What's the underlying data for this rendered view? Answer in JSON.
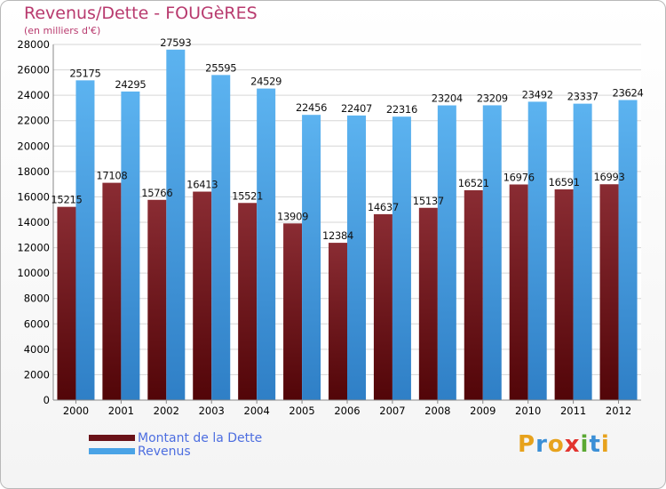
{
  "header": {
    "title": "Revenus/Dette - FOUGèRES",
    "subtitle": "(en milliers d'€)"
  },
  "chart_data": {
    "type": "bar",
    "title": "Revenus/Dette - FOUGèRES",
    "subtitle": "(en milliers d'€)",
    "xlabel": "",
    "ylabel": "",
    "ylim": [
      0,
      28000
    ],
    "yticks": [
      0,
      2000,
      4000,
      6000,
      8000,
      10000,
      12000,
      14000,
      16000,
      18000,
      20000,
      22000,
      24000,
      26000,
      28000
    ],
    "grid": true,
    "legend_position": "bottom-left",
    "categories": [
      "2000",
      "2001",
      "2002",
      "2003",
      "2004",
      "2005",
      "2006",
      "2007",
      "2008",
      "2009",
      "2010",
      "2011",
      "2012"
    ],
    "series": [
      {
        "name": "Montant de la Dette",
        "color": "#7a1f25",
        "values": [
          15215,
          17108,
          15766,
          16413,
          15521,
          13909,
          12384,
          14637,
          15137,
          16521,
          16976,
          16591,
          16993
        ],
        "labels": [
          "15215",
          "17108",
          "15766",
          "16413",
          "15521",
          "13909",
          "12384",
          "14637",
          "15137",
          "16521",
          "16976",
          "16591",
          "16993"
        ]
      },
      {
        "name": "Revenus",
        "color": "#4aa3e6",
        "values": [
          25175,
          24295,
          27593,
          25595,
          24529,
          22456,
          22407,
          22316,
          23204,
          23209,
          23492,
          23337,
          23624
        ],
        "labels": [
          "25175",
          "24295",
          "27593",
          "25595",
          "24529",
          "22456",
          "22407",
          "22316",
          "23204",
          "23209",
          "23492",
          "23337",
          "23624"
        ]
      }
    ]
  },
  "legend": {
    "items": [
      {
        "label": "Montant de la Dette",
        "color": "#7a1f25"
      },
      {
        "label": "Revenus",
        "color": "#4aa3e6"
      }
    ]
  },
  "logo": {
    "letters": [
      "P",
      "r",
      "o",
      "x",
      "i",
      "t",
      "i"
    ],
    "colors": [
      "#e7a21c",
      "#3b8fd6",
      "#e7a21c",
      "#e2332e",
      "#5aa832",
      "#3b8fd6",
      "#e7a21c"
    ]
  }
}
